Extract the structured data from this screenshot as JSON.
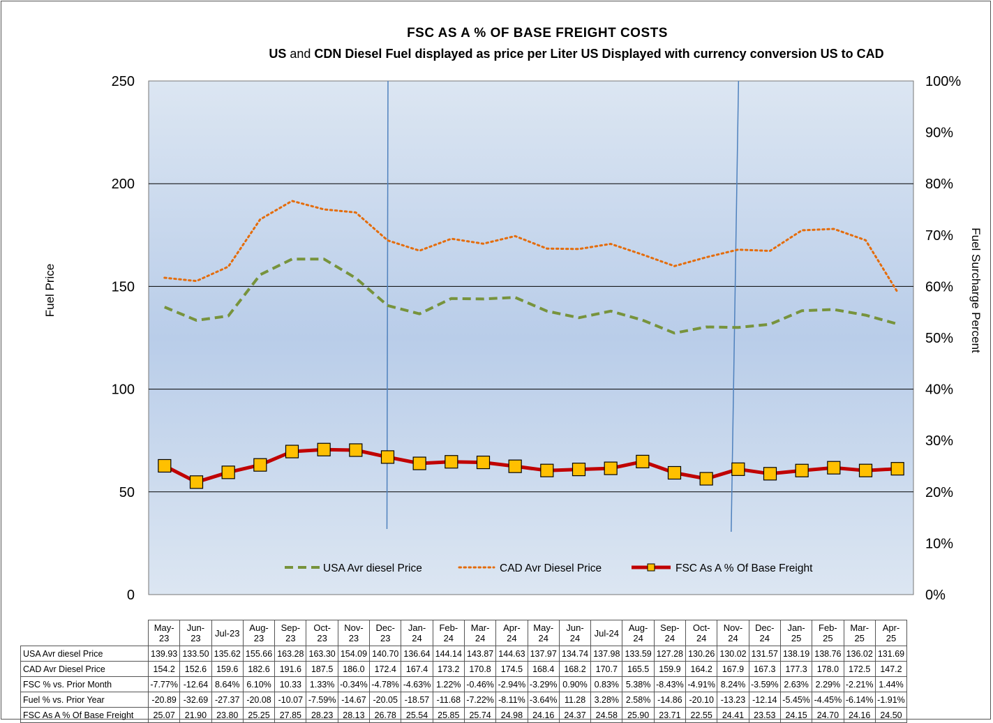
{
  "chart_data": {
    "type": "line",
    "title": "FSC AS A % OF BASE FREIGHT COSTS",
    "subtitle_parts": [
      "US",
      " and ",
      "CDN Diesel Fuel displayed as price per Liter US Displayed with currency conversion US to CAD"
    ],
    "ylabel": "Fuel Price",
    "y2label": "Fuel Surcharge Percent",
    "ylim": [
      0,
      250
    ],
    "y_ticks": [
      "0",
      "50",
      "100",
      "150",
      "200",
      "250"
    ],
    "y2lim": [
      0,
      100
    ],
    "y2_ticks": [
      "0%",
      "10%",
      "20%",
      "30%",
      "40%",
      "50%",
      "60%",
      "70%",
      "80%",
      "90%",
      "100%"
    ],
    "grid": true,
    "legend_position": "bottom",
    "categories": [
      [
        "May-",
        "23"
      ],
      [
        "Jun-",
        "23"
      ],
      [
        "Jul-23"
      ],
      [
        "Aug-",
        "23"
      ],
      [
        "Sep-",
        "23"
      ],
      [
        "Oct-",
        "23"
      ],
      [
        "Nov-",
        "23"
      ],
      [
        "Dec-",
        "23"
      ],
      [
        "Jan-",
        "24"
      ],
      [
        "Feb-",
        "24"
      ],
      [
        "Mar-",
        "24"
      ],
      [
        "Apr-",
        "24"
      ],
      [
        "May-",
        "24"
      ],
      [
        "Jun-",
        "24"
      ],
      [
        "Jul-24"
      ],
      [
        "Aug-",
        "24"
      ],
      [
        "Sep-",
        "24"
      ],
      [
        "Oct-",
        "24"
      ],
      [
        "Nov-",
        "24"
      ],
      [
        "Dec-",
        "24"
      ],
      [
        "Jan-",
        "25"
      ],
      [
        "Feb-",
        "25"
      ],
      [
        "Mar-",
        "25"
      ],
      [
        "Apr-",
        "25"
      ]
    ],
    "vertical_markers_after_index": [
      7,
      18
    ],
    "series": [
      {
        "name": "USA Avr diesel Price",
        "axis": "left",
        "style": "dashed",
        "color": "#77933C",
        "values": [
          139.93,
          133.5,
          135.62,
          155.66,
          163.28,
          163.3,
          154.09,
          140.7,
          136.64,
          144.14,
          143.87,
          144.63,
          137.97,
          134.74,
          137.98,
          133.59,
          127.28,
          130.26,
          130.02,
          131.57,
          138.19,
          138.76,
          136.02,
          131.69
        ],
        "display": [
          "139.93",
          "133.50",
          "135.62",
          "155.66",
          "163.28",
          "163.30",
          "154.09",
          "140.70",
          "136.64",
          "144.14",
          "143.87",
          "144.63",
          "137.97",
          "134.74",
          "137.98",
          "133.59",
          "127.28",
          "130.26",
          "130.02",
          "131.57",
          "138.19",
          "138.76",
          "136.02",
          "131.69"
        ]
      },
      {
        "name": "CAD Avr Diesel Price",
        "axis": "left",
        "style": "dotted",
        "color": "#E46C0A",
        "values": [
          154.2,
          152.6,
          159.6,
          182.6,
          191.6,
          187.5,
          186.0,
          172.4,
          167.4,
          173.2,
          170.8,
          174.5,
          168.4,
          168.2,
          170.7,
          165.5,
          159.9,
          164.2,
          167.9,
          167.3,
          177.3,
          178.0,
          172.5,
          147.2
        ],
        "display": [
          "154.2",
          "152.6",
          "159.6",
          "182.6",
          "191.6",
          "187.5",
          "186.0",
          "172.4",
          "167.4",
          "173.2",
          "170.8",
          "174.5",
          "168.4",
          "168.2",
          "170.7",
          "165.5",
          "159.9",
          "164.2",
          "167.9",
          "167.3",
          "177.3",
          "178.0",
          "172.5",
          "147.2"
        ]
      },
      {
        "name": "FSC % vs. Prior Month",
        "table_only": true,
        "display": [
          "-7.77%",
          "-12.64",
          "8.64%",
          "6.10%",
          "10.33",
          "1.33%",
          "-0.34%",
          "-4.78%",
          "-4.63%",
          "1.22%",
          "-0.46%",
          "-2.94%",
          "-3.29%",
          "0.90%",
          "0.83%",
          "5.38%",
          "-8.43%",
          "-4.91%",
          "8.24%",
          "-3.59%",
          "2.63%",
          "2.29%",
          "-2.21%",
          "1.44%"
        ]
      },
      {
        "name": "Fuel % vs. Prior Year",
        "table_only": true,
        "display": [
          "-20.89",
          "-32.69",
          "-27.37",
          "-20.08",
          "-10.07",
          "-7.59%",
          "-14.67",
          "-20.05",
          "-18.57",
          "-11.68",
          "-7.22%",
          "-8.11%",
          "-3.64%",
          "11.28",
          "3.28%",
          "2.58%",
          "-14.86",
          "-20.10",
          "-13.23",
          "-12.14",
          "-5.45%",
          "-4.45%",
          "-6.14%",
          "-1.91%"
        ]
      },
      {
        "name": "FSC As A % Of Base Freight",
        "axis": "right",
        "style": "line-square-markers",
        "color": "#C00000",
        "marker_color": "#FFC000",
        "values": [
          25.07,
          21.9,
          23.8,
          25.25,
          27.85,
          28.23,
          28.13,
          26.78,
          25.54,
          25.85,
          25.74,
          24.98,
          24.16,
          24.37,
          24.58,
          25.9,
          23.71,
          22.55,
          24.41,
          23.53,
          24.15,
          24.7,
          24.16,
          24.5
        ],
        "display": [
          "25.07",
          "21.90",
          "23.80",
          "25.25",
          "27.85",
          "28.23",
          "28.13",
          "26.78",
          "25.54",
          "25.85",
          "25.74",
          "24.98",
          "24.16",
          "24.37",
          "24.58",
          "25.90",
          "23.71",
          "22.55",
          "24.41",
          "23.53",
          "24.15",
          "24.70",
          "24.16",
          "24.50"
        ]
      }
    ],
    "legend": [
      "USA Avr diesel Price",
      "CAD Avr Diesel Price",
      "FSC As A % Of Base Freight"
    ]
  }
}
